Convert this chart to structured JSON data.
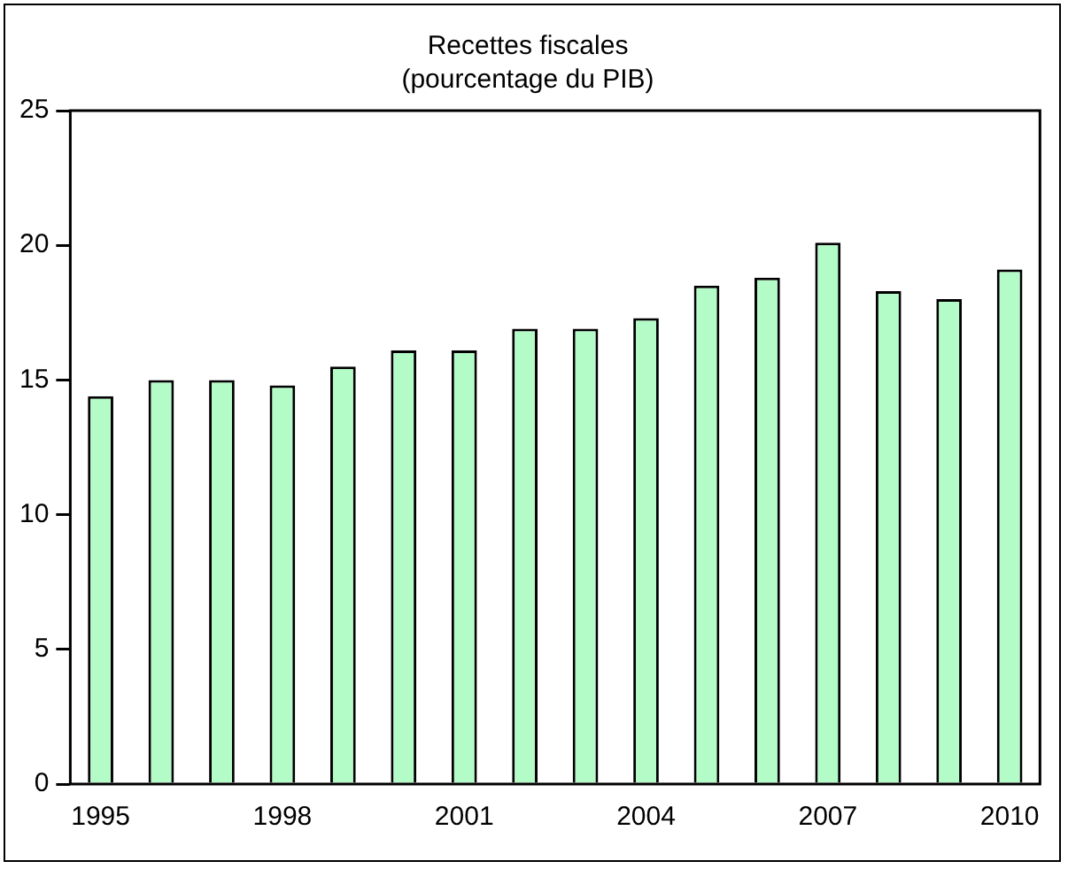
{
  "chart_data": {
    "type": "bar",
    "title": "Recettes fiscales\n(pourcentage du PIB)",
    "categories": [
      "1995",
      null,
      null,
      "1998",
      null,
      null,
      "2001",
      null,
      null,
      "2004",
      null,
      null,
      "2007",
      null,
      null,
      "2010"
    ],
    "values": [
      14.4,
      15.0,
      15.0,
      14.8,
      15.5,
      16.1,
      16.1,
      16.9,
      16.9,
      17.3,
      18.5,
      18.8,
      20.1,
      18.3,
      18.0,
      19.1
    ],
    "color": "#b3fcc8",
    "ylim": [
      0,
      25
    ],
    "yticks": [
      0,
      5,
      10,
      15,
      20,
      25
    ],
    "grid": false,
    "legend": false
  }
}
